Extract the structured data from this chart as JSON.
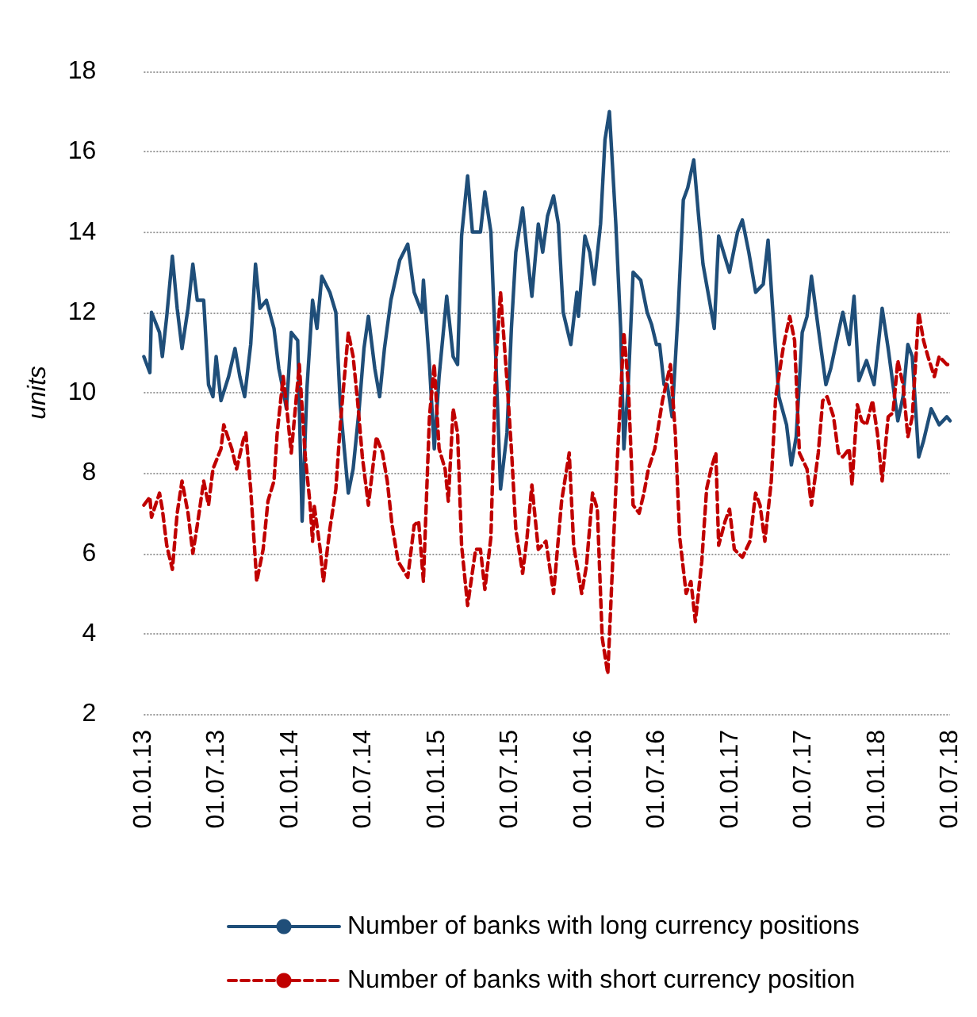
{
  "chart_data": {
    "type": "line",
    "ylabel": "units",
    "xlim": [
      "2013-01-01",
      "2018-07-01"
    ],
    "ylim": [
      2,
      18
    ],
    "yticks": [
      2,
      4,
      6,
      8,
      10,
      12,
      14,
      16,
      18
    ],
    "xticks": [
      {
        "value": "2013-01-01",
        "label": "01.01.13"
      },
      {
        "value": "2013-07-01",
        "label": "01.07.13"
      },
      {
        "value": "2014-01-01",
        "label": "01.01.14"
      },
      {
        "value": "2014-07-01",
        "label": "01.07.14"
      },
      {
        "value": "2015-01-01",
        "label": "01.01.15"
      },
      {
        "value": "2015-07-01",
        "label": "01.07.15"
      },
      {
        "value": "2016-01-01",
        "label": "01.01.16"
      },
      {
        "value": "2016-07-01",
        "label": "01.07.16"
      },
      {
        "value": "2017-01-01",
        "label": "01.01.17"
      },
      {
        "value": "2017-07-01",
        "label": "01.07.17"
      },
      {
        "value": "2018-01-01",
        "label": "01.01.18"
      },
      {
        "value": "2018-07-01",
        "label": "01.07.18"
      }
    ],
    "grid": "y",
    "legend": "bottom",
    "marker": "none",
    "series": [
      {
        "name": "Number of banks with long currency positions",
        "color": "#1f4e79",
        "line_style": "solid",
        "x": [
          "2013-01-01",
          "2013-01-16",
          "2013-01-20",
          "2013-02-09",
          "2013-02-16",
          "2013-02-27",
          "2013-03-13",
          "2013-03-25",
          "2013-04-06",
          "2013-04-21",
          "2013-05-03",
          "2013-05-14",
          "2013-05-30",
          "2013-06-11",
          "2013-06-22",
          "2013-06-30",
          "2013-07-12",
          "2013-07-31",
          "2013-08-16",
          "2013-08-28",
          "2013-09-09",
          "2013-09-24",
          "2013-10-06",
          "2013-10-17",
          "2013-11-02",
          "2013-11-21",
          "2013-12-03",
          "2013-12-11",
          "2013-12-22",
          "2014-01-03",
          "2014-01-19",
          "2014-01-30",
          "2014-02-11",
          "2014-02-25",
          "2014-03-08",
          "2014-03-20",
          "2014-04-09",
          "2014-04-24",
          "2014-05-05",
          "2014-05-25",
          "2014-06-06",
          "2014-06-21",
          "2014-07-03",
          "2014-07-14",
          "2014-07-30",
          "2014-08-11",
          "2014-08-23",
          "2014-09-08",
          "2014-09-19",
          "2014-09-30",
          "2014-10-20",
          "2014-11-05",
          "2014-11-24",
          "2014-11-28",
          "2014-12-13",
          "2014-12-25",
          "2015-01-06",
          "2015-01-25",
          "2015-02-10",
          "2015-02-21",
          "2015-03-03",
          "2015-03-18",
          "2015-03-30",
          "2015-04-19",
          "2015-04-30",
          "2015-05-15",
          "2015-05-27",
          "2015-06-08",
          "2015-06-24",
          "2015-07-05",
          "2015-07-16",
          "2015-08-02",
          "2015-08-13",
          "2015-08-25",
          "2015-09-10",
          "2015-09-21",
          "2015-10-03",
          "2015-10-18",
          "2015-10-30",
          "2015-11-11",
          "2015-11-30",
          "2015-12-15",
          "2015-12-19",
          "2016-01-04",
          "2016-01-16",
          "2016-01-27",
          "2016-02-12",
          "2016-02-23",
          "2016-03-05",
          "2016-03-21",
          "2016-04-02",
          "2016-04-10",
          "2016-04-21",
          "2016-05-03",
          "2016-05-22",
          "2016-06-07",
          "2016-06-18",
          "2016-06-30",
          "2016-07-08",
          "2016-07-19",
          "2016-07-27",
          "2016-08-08",
          "2016-08-23",
          "2016-09-05",
          "2016-09-16",
          "2016-10-01",
          "2016-10-13",
          "2016-10-24",
          "2016-11-09",
          "2016-11-21",
          "2016-12-02",
          "2016-12-29",
          "2017-01-18",
          "2017-01-30",
          "2017-02-15",
          "2017-03-04",
          "2017-03-23",
          "2017-04-04",
          "2017-04-16",
          "2017-05-01",
          "2017-05-20",
          "2017-06-01",
          "2017-06-13",
          "2017-06-28",
          "2017-07-10",
          "2017-07-21",
          "2017-08-07",
          "2017-08-26",
          "2017-09-07",
          "2017-09-26",
          "2017-10-07",
          "2017-10-23",
          "2017-11-04",
          "2017-11-16",
          "2017-12-05",
          "2017-12-24",
          "2018-01-13",
          "2018-01-28",
          "2018-02-09",
          "2018-02-21",
          "2018-03-06",
          "2018-03-18",
          "2018-03-29",
          "2018-04-14",
          "2018-04-26",
          "2018-05-15",
          "2018-06-04",
          "2018-06-23",
          "2018-07-01"
        ],
        "values": [
          10.9,
          10.5,
          12.0,
          11.5,
          10.9,
          11.9,
          13.4,
          12.1,
          11.1,
          12.1,
          13.2,
          12.3,
          12.3,
          10.2,
          9.9,
          10.9,
          9.8,
          10.4,
          11.1,
          10.4,
          9.9,
          11.2,
          13.2,
          12.1,
          12.3,
          11.6,
          10.6,
          10.2,
          9.6,
          11.5,
          11.3,
          6.8,
          10.1,
          12.3,
          11.6,
          12.9,
          12.5,
          12.0,
          9.7,
          7.5,
          8.1,
          9.6,
          11.1,
          11.9,
          10.6,
          9.9,
          11.1,
          12.3,
          12.8,
          13.3,
          13.7,
          12.5,
          12.0,
          12.8,
          10.7,
          8.6,
          10.4,
          12.4,
          10.9,
          10.7,
          13.9,
          15.4,
          14.0,
          14.0,
          15.0,
          14.0,
          10.9,
          7.6,
          9.0,
          11.6,
          13.5,
          14.6,
          13.5,
          12.4,
          14.2,
          13.5,
          14.4,
          14.9,
          14.2,
          12.0,
          11.2,
          12.5,
          11.9,
          13.9,
          13.5,
          12.7,
          14.2,
          16.3,
          17.0,
          14.2,
          11.6,
          8.6,
          10.2,
          13.0,
          12.8,
          12.0,
          11.7,
          11.2,
          11.2,
          10.2,
          10.2,
          9.4,
          12.0,
          14.8,
          15.1,
          15.8,
          14.4,
          13.2,
          12.3,
          11.6,
          13.9,
          13.0,
          14.0,
          14.3,
          13.5,
          12.5,
          12.7,
          13.8,
          12.0,
          9.9,
          9.2,
          8.2,
          8.9,
          11.5,
          11.9,
          12.9,
          11.6,
          10.2,
          10.6,
          11.5,
          12.0,
          11.2,
          12.4,
          10.3,
          10.8,
          10.2,
          12.1,
          11.1,
          10.2,
          9.3,
          9.9,
          11.2,
          10.9,
          8.4,
          8.8,
          9.6,
          9.2,
          9.4,
          9.3
        ]
      },
      {
        "name": "Number of banks with short currency position",
        "color": "#c00000",
        "line_style": "dashed",
        "x": [
          "2013-01-01",
          "2013-01-16",
          "2013-01-20",
          "2013-02-09",
          "2013-02-16",
          "2013-02-27",
          "2013-03-13",
          "2013-03-25",
          "2013-04-06",
          "2013-04-21",
          "2013-05-03",
          "2013-05-14",
          "2013-05-30",
          "2013-06-11",
          "2013-06-22",
          "2013-07-12",
          "2013-07-19",
          "2013-08-08",
          "2013-08-20",
          "2013-09-05",
          "2013-09-12",
          "2013-09-24",
          "2013-10-09",
          "2013-10-25",
          "2013-11-06",
          "2013-11-21",
          "2013-11-29",
          "2013-12-14",
          "2013-12-22",
          "2014-01-03",
          "2014-01-23",
          "2014-02-07",
          "2014-02-19",
          "2014-02-25",
          "2014-03-01",
          "2014-03-16",
          "2014-03-24",
          "2014-04-09",
          "2014-04-24",
          "2014-05-05",
          "2014-05-25",
          "2014-06-06",
          "2014-06-17",
          "2014-06-29",
          "2014-07-14",
          "2014-08-03",
          "2014-08-18",
          "2014-08-30",
          "2014-09-11",
          "2014-09-26",
          "2014-10-20",
          "2014-11-05",
          "2014-11-16",
          "2014-11-28",
          "2014-12-13",
          "2014-12-25",
          "2015-01-06",
          "2015-01-21",
          "2015-01-29",
          "2015-02-10",
          "2015-02-21",
          "2015-03-03",
          "2015-03-18",
          "2015-04-07",
          "2015-04-19",
          "2015-04-30",
          "2015-05-15",
          "2015-05-27",
          "2015-06-08",
          "2015-06-24",
          "2015-07-05",
          "2015-07-16",
          "2015-08-02",
          "2015-08-13",
          "2015-08-25",
          "2015-09-10",
          "2015-09-29",
          "2015-10-18",
          "2015-11-07",
          "2015-11-26",
          "2015-12-07",
          "2015-12-27",
          "2016-01-08",
          "2016-01-23",
          "2016-02-04",
          "2016-02-16",
          "2016-03-01",
          "2016-03-21",
          "2016-04-10",
          "2016-04-21",
          "2016-05-03",
          "2016-05-18",
          "2016-05-30",
          "2016-06-10",
          "2016-06-26",
          "2016-07-15",
          "2016-08-04",
          "2016-08-16",
          "2016-08-27",
          "2016-09-12",
          "2016-09-24",
          "2016-10-05",
          "2016-10-21",
          "2016-11-02",
          "2016-11-13",
          "2016-11-25",
          "2016-12-02",
          "2016-12-18",
          "2016-12-29",
          "2017-01-10",
          "2017-01-30",
          "2017-02-18",
          "2017-03-04",
          "2017-03-15",
          "2017-03-27",
          "2017-04-12",
          "2017-04-23",
          "2017-05-13",
          "2017-05-28",
          "2017-06-09",
          "2017-06-21",
          "2017-07-10",
          "2017-07-21",
          "2017-08-07",
          "2017-08-18",
          "2017-08-29",
          "2017-09-14",
          "2017-09-26",
          "2017-10-07",
          "2017-10-23",
          "2017-10-30",
          "2017-11-12",
          "2017-11-23",
          "2017-12-05",
          "2017-12-20",
          "2018-01-01",
          "2018-01-13",
          "2018-01-28",
          "2018-02-09",
          "2018-02-21",
          "2018-03-06",
          "2018-03-18",
          "2018-03-29",
          "2018-04-14",
          "2018-04-26",
          "2018-05-07",
          "2018-05-23",
          "2018-06-04",
          "2018-06-23",
          "2018-07-01"
        ],
        "values": [
          7.2,
          7.4,
          6.9,
          7.5,
          7.1,
          6.2,
          5.6,
          7.0,
          7.8,
          7.0,
          6.0,
          6.7,
          7.8,
          7.2,
          8.1,
          8.6,
          9.2,
          8.6,
          8.1,
          8.8,
          9.0,
          7.6,
          5.3,
          6.1,
          7.3,
          7.8,
          9.0,
          10.4,
          9.7,
          8.5,
          10.7,
          8.4,
          7.2,
          6.3,
          7.2,
          6.1,
          5.3,
          6.6,
          7.6,
          9.2,
          11.5,
          10.9,
          9.8,
          8.4,
          7.2,
          8.9,
          8.5,
          7.8,
          6.7,
          5.8,
          5.4,
          6.7,
          6.8,
          5.3,
          9.4,
          10.7,
          8.6,
          8.1,
          7.3,
          9.6,
          9.0,
          6.2,
          4.7,
          6.1,
          6.1,
          5.1,
          6.4,
          10.7,
          12.5,
          10.3,
          8.6,
          6.6,
          5.5,
          6.4,
          7.7,
          6.1,
          6.3,
          5.0,
          7.3,
          8.5,
          6.2,
          5.0,
          5.7,
          7.5,
          7.1,
          3.9,
          3.0,
          7.6,
          11.5,
          10.2,
          7.2,
          7.0,
          7.5,
          8.1,
          8.6,
          9.8,
          10.7,
          9.0,
          6.4,
          5.0,
          5.3,
          4.3,
          5.8,
          7.6,
          8.1,
          8.5,
          6.2,
          6.8,
          7.1,
          6.1,
          5.9,
          6.3,
          7.5,
          7.2,
          6.3,
          7.8,
          9.9,
          11.2,
          11.9,
          11.3,
          8.5,
          8.1,
          7.2,
          8.5,
          9.8,
          9.9,
          9.4,
          8.5,
          8.4,
          8.6,
          7.7,
          9.7,
          9.3,
          9.2,
          9.8,
          9.0,
          7.8,
          9.4,
          9.5,
          10.8,
          10.2,
          8.9,
          9.4,
          12.0,
          11.3,
          10.9,
          10.4,
          10.9,
          10.7,
          10.7
        ]
      }
    ]
  }
}
